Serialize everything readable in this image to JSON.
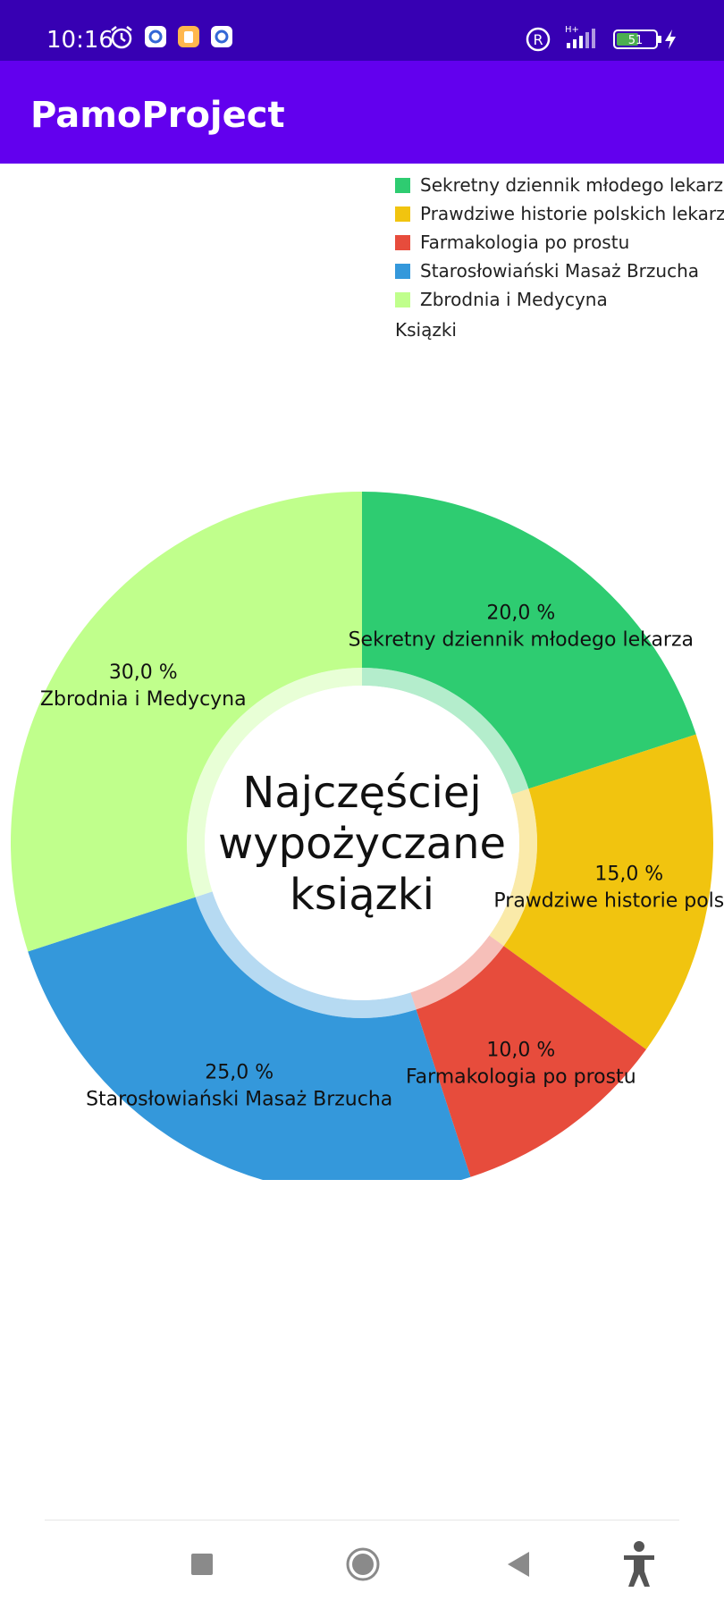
{
  "status_bar": {
    "time": "10:16",
    "battery": "51",
    "network": "H+",
    "background": "#3700b3",
    "icons": [
      "alarm-icon",
      "settings-app-icon",
      "storage-app-icon",
      "settings-app-icon",
      "registered-icon",
      "signal-icon",
      "battery-icon",
      "charging-icon"
    ]
  },
  "app_bar": {
    "title": "PamoProject",
    "background": "#6200ee"
  },
  "chart_data": {
    "type": "pie",
    "hole": "donut",
    "center_text": [
      "Najczęściej",
      "wypożyczane",
      "ksiązki"
    ],
    "legend_title": "Ksiązki",
    "legend_position": "top-right",
    "slices": [
      {
        "label": "Sekretny dziennik młodego lekarza",
        "value": 20,
        "display": "20,0 %",
        "color": "#2ecc71"
      },
      {
        "label": "Prawdziwe historie polskich lekarzy",
        "value": 15,
        "display": "15,0 %",
        "color": "#f1c40f"
      },
      {
        "label": "Farmakologia po prostu",
        "value": 10,
        "display": "10,0 %",
        "color": "#e74c3c"
      },
      {
        "label": "Starosłowiański Masaż Brzucha",
        "value": 25,
        "display": "25,0 %",
        "color": "#3498db"
      },
      {
        "label": "Zbrodnia i Medycyna",
        "value": 30,
        "display": "30,0 %",
        "color": "#c0ff8c"
      }
    ],
    "slice_name_labels": [
      "Sekretny dziennik młodego lekarza",
      "Prawdziwe historie polskich",
      "Farmakologia po prostu",
      "Starosłowiański Masaż Brzucha",
      "Zbrodnia i Medycyna"
    ]
  },
  "nav_bar": {
    "icons": [
      "recents-square-icon",
      "home-circle-icon",
      "back-triangle-icon",
      "accessibility-icon"
    ]
  }
}
